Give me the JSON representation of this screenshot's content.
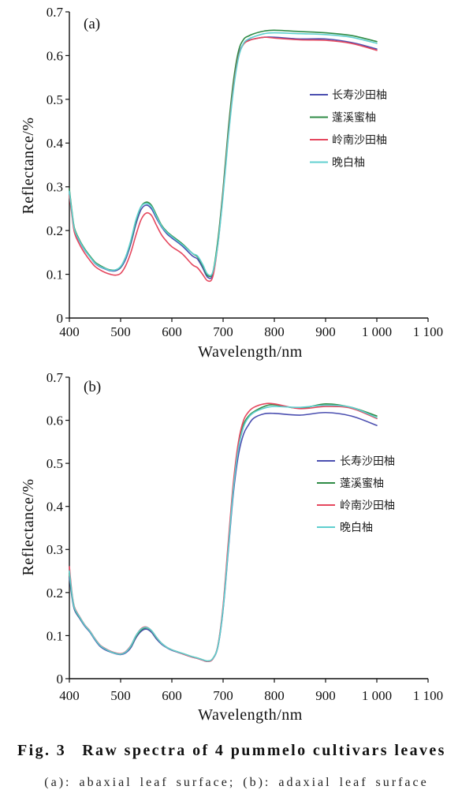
{
  "caption": {
    "fig_number": "Fig. 3",
    "title": "Raw spectra of 4 pummelo cultivars leaves",
    "note": "(a): abaxial leaf surface; (b): adaxial leaf surface"
  },
  "chart_data": [
    {
      "type": "line",
      "panel_label": "(a)",
      "xlabel": "Wavelength/nm",
      "ylabel": "Reflectance/%",
      "xlim": [
        400,
        1100
      ],
      "ylim": [
        0,
        0.7
      ],
      "xticks": [
        400,
        500,
        600,
        700,
        800,
        900,
        1000,
        1100
      ],
      "xtick_labels": [
        "400",
        "500",
        "600",
        "700",
        "800",
        "900",
        "1 000",
        "1 100"
      ],
      "yticks": [
        0,
        0.1,
        0.2,
        0.3,
        0.4,
        0.5,
        0.6,
        0.7
      ],
      "ytick_labels": [
        "0",
        "0.1",
        "0.2",
        "0.3",
        "0.4",
        "0.5",
        "0.6",
        "0.7"
      ],
      "grid": false,
      "legend_position": "right",
      "x": [
        400,
        405,
        410,
        420,
        430,
        440,
        450,
        460,
        470,
        480,
        490,
        500,
        510,
        520,
        530,
        540,
        550,
        560,
        570,
        580,
        590,
        600,
        620,
        640,
        650,
        660,
        670,
        680,
        690,
        700,
        710,
        720,
        730,
        740,
        750,
        760,
        780,
        800,
        850,
        900,
        950,
        1000
      ],
      "series": [
        {
          "name": "长寿沙田柚",
          "color": "#4b4fb0",
          "values": [
            0.29,
            0.24,
            0.2,
            0.175,
            0.155,
            0.14,
            0.125,
            0.117,
            0.112,
            0.108,
            0.108,
            0.115,
            0.135,
            0.17,
            0.215,
            0.248,
            0.258,
            0.25,
            0.228,
            0.208,
            0.193,
            0.183,
            0.165,
            0.142,
            0.135,
            0.115,
            0.093,
            0.1,
            0.175,
            0.29,
            0.42,
            0.53,
            0.6,
            0.627,
            0.635,
            0.638,
            0.642,
            0.642,
            0.638,
            0.638,
            0.63,
            0.615
          ]
        },
        {
          "name": "蓬溪蜜柚",
          "color": "#2e8b45",
          "values": [
            0.295,
            0.245,
            0.205,
            0.178,
            0.158,
            0.142,
            0.128,
            0.12,
            0.114,
            0.11,
            0.11,
            0.117,
            0.14,
            0.175,
            0.222,
            0.255,
            0.265,
            0.258,
            0.235,
            0.212,
            0.198,
            0.188,
            0.17,
            0.148,
            0.14,
            0.12,
            0.097,
            0.105,
            0.18,
            0.295,
            0.43,
            0.54,
            0.61,
            0.637,
            0.645,
            0.65,
            0.656,
            0.658,
            0.655,
            0.652,
            0.646,
            0.632
          ]
        },
        {
          "name": "岭南沙田柚",
          "color": "#e5475e",
          "values": [
            0.28,
            0.235,
            0.195,
            0.168,
            0.148,
            0.132,
            0.118,
            0.11,
            0.104,
            0.1,
            0.098,
            0.102,
            0.12,
            0.15,
            0.19,
            0.225,
            0.24,
            0.235,
            0.212,
            0.19,
            0.175,
            0.163,
            0.147,
            0.122,
            0.115,
            0.1,
            0.085,
            0.095,
            0.17,
            0.285,
            0.415,
            0.525,
            0.598,
            0.626,
            0.634,
            0.638,
            0.642,
            0.64,
            0.636,
            0.635,
            0.628,
            0.612
          ]
        },
        {
          "name": "晚白柚",
          "color": "#5fcfcf",
          "values": [
            0.29,
            0.242,
            0.202,
            0.176,
            0.156,
            0.14,
            0.126,
            0.118,
            0.113,
            0.109,
            0.11,
            0.118,
            0.14,
            0.178,
            0.225,
            0.255,
            0.262,
            0.255,
            0.232,
            0.21,
            0.196,
            0.186,
            0.168,
            0.148,
            0.142,
            0.123,
            0.1,
            0.105,
            0.17,
            0.28,
            0.41,
            0.52,
            0.595,
            0.628,
            0.638,
            0.643,
            0.65,
            0.652,
            0.65,
            0.648,
            0.642,
            0.628
          ]
        }
      ]
    },
    {
      "type": "line",
      "panel_label": "(b)",
      "xlabel": "Wavelength/nm",
      "ylabel": "Reflectance/%",
      "xlim": [
        400,
        1100
      ],
      "ylim": [
        0,
        0.7
      ],
      "xticks": [
        400,
        500,
        600,
        700,
        800,
        900,
        1000,
        1100
      ],
      "xtick_labels": [
        "400",
        "500",
        "600",
        "700",
        "800",
        "900",
        "1 000",
        "1 100"
      ],
      "yticks": [
        0,
        0.1,
        0.2,
        0.3,
        0.4,
        0.5,
        0.6,
        0.7
      ],
      "ytick_labels": [
        "0",
        "0.1",
        "0.2",
        "0.3",
        "0.4",
        "0.5",
        "0.6",
        "0.7"
      ],
      "grid": false,
      "legend_position": "right",
      "x": [
        400,
        405,
        410,
        420,
        430,
        440,
        450,
        460,
        470,
        480,
        490,
        500,
        510,
        520,
        530,
        540,
        550,
        560,
        570,
        580,
        590,
        600,
        620,
        640,
        650,
        660,
        670,
        680,
        690,
        700,
        710,
        720,
        730,
        740,
        750,
        760,
        780,
        800,
        850,
        900,
        950,
        1000
      ],
      "series": [
        {
          "name": "长寿沙田柚",
          "color": "#4b4fb0",
          "values": [
            0.235,
            0.19,
            0.16,
            0.14,
            0.122,
            0.108,
            0.09,
            0.075,
            0.067,
            0.062,
            0.058,
            0.056,
            0.06,
            0.072,
            0.095,
            0.11,
            0.115,
            0.108,
            0.092,
            0.08,
            0.072,
            0.066,
            0.058,
            0.05,
            0.047,
            0.043,
            0.04,
            0.046,
            0.075,
            0.16,
            0.295,
            0.43,
            0.52,
            0.568,
            0.59,
            0.605,
            0.615,
            0.616,
            0.612,
            0.618,
            0.61,
            0.588
          ]
        },
        {
          "name": "蓬溪蜜柚",
          "color": "#2e8b45",
          "values": [
            0.245,
            0.195,
            0.163,
            0.142,
            0.124,
            0.11,
            0.092,
            0.077,
            0.069,
            0.063,
            0.059,
            0.057,
            0.062,
            0.075,
            0.098,
            0.113,
            0.118,
            0.111,
            0.095,
            0.082,
            0.073,
            0.067,
            0.059,
            0.051,
            0.048,
            0.044,
            0.041,
            0.047,
            0.077,
            0.165,
            0.305,
            0.445,
            0.54,
            0.59,
            0.61,
            0.62,
            0.632,
            0.636,
            0.628,
            0.638,
            0.63,
            0.61
          ]
        },
        {
          "name": "岭南沙田柚",
          "color": "#e5475e",
          "values": [
            0.26,
            0.2,
            0.166,
            0.144,
            0.125,
            0.111,
            0.093,
            0.078,
            0.07,
            0.064,
            0.06,
            0.058,
            0.063,
            0.077,
            0.1,
            0.116,
            0.12,
            0.112,
            0.096,
            0.082,
            0.073,
            0.067,
            0.058,
            0.05,
            0.047,
            0.043,
            0.04,
            0.046,
            0.078,
            0.17,
            0.315,
            0.455,
            0.55,
            0.6,
            0.62,
            0.63,
            0.638,
            0.638,
            0.627,
            0.632,
            0.628,
            0.604
          ]
        },
        {
          "name": "晚白柚",
          "color": "#5fcfcf",
          "values": [
            0.25,
            0.197,
            0.164,
            0.143,
            0.124,
            0.11,
            0.092,
            0.077,
            0.069,
            0.063,
            0.059,
            0.057,
            0.062,
            0.076,
            0.1,
            0.115,
            0.119,
            0.112,
            0.096,
            0.082,
            0.073,
            0.067,
            0.059,
            0.051,
            0.048,
            0.044,
            0.041,
            0.047,
            0.076,
            0.163,
            0.3,
            0.44,
            0.535,
            0.585,
            0.607,
            0.618,
            0.628,
            0.632,
            0.63,
            0.635,
            0.63,
            0.606
          ]
        }
      ]
    }
  ]
}
